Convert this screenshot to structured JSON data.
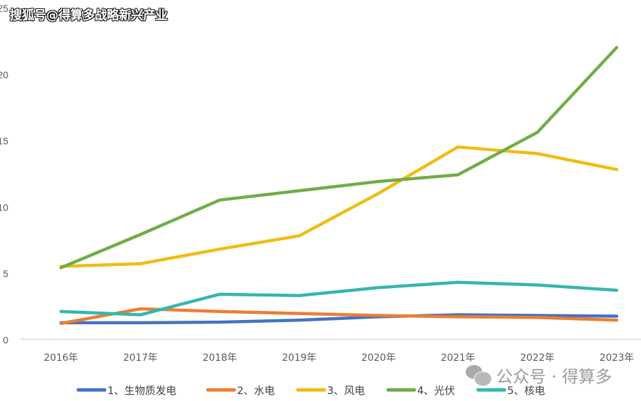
{
  "watermarks": {
    "top": "搜狐号@得算多战略新兴产业",
    "bottom": "公众号 · 得算多"
  },
  "chart_data": {
    "type": "line",
    "title": "",
    "xlabel": "",
    "ylabel": "",
    "ylim": [
      0,
      25
    ],
    "yticks": [
      "0",
      "5",
      "10",
      "15",
      "20",
      "25"
    ],
    "grid": false,
    "legend": "bottom",
    "categories": [
      "2016年",
      "2017年",
      "2018年",
      "2019年",
      "2020年",
      "2021年",
      "2022年",
      "2023年"
    ],
    "series": [
      {
        "name": "1、生物质发电",
        "color": "#4472C4",
        "values": [
          1.25,
          1.25,
          1.3,
          1.45,
          1.7,
          1.85,
          1.8,
          1.75
        ]
      },
      {
        "name": "2、水电",
        "color": "#ED7D31",
        "values": [
          1.2,
          2.3,
          2.1,
          1.95,
          1.8,
          1.7,
          1.65,
          1.45
        ]
      },
      {
        "name": "3、风电",
        "color": "#F0BC12",
        "values": [
          5.5,
          5.7,
          6.8,
          7.8,
          11.0,
          14.5,
          14.0,
          12.8
        ]
      },
      {
        "name": "4、光伏",
        "color": "#70AD47",
        "values": [
          5.4,
          7.9,
          10.5,
          11.2,
          11.9,
          12.4,
          15.6,
          22.0
        ]
      },
      {
        "name": "5、核电",
        "color": "#36B5B0",
        "values": [
          2.1,
          1.85,
          3.4,
          3.3,
          3.9,
          4.3,
          4.1,
          3.7
        ]
      }
    ]
  }
}
